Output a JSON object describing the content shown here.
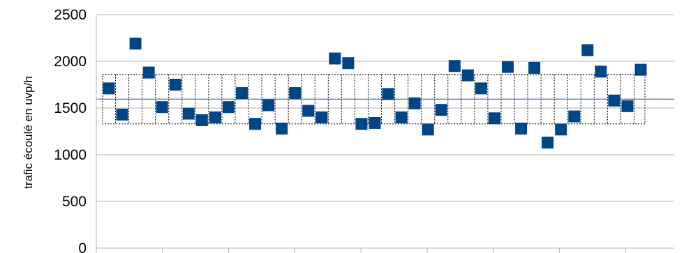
{
  "chart_data": {
    "type": "scatter",
    "title": "",
    "xlabel": "",
    "ylabel": "trafic écoulé en uvp/h",
    "ylim": [
      0,
      2500
    ],
    "y_ticks": [
      "0",
      "500",
      "1000",
      "1500",
      "2000",
      "2500"
    ],
    "grid": "horizontal",
    "mean_line": 1595,
    "band": [
      1330,
      1860
    ],
    "marker": "square",
    "color": "#004586",
    "band_color": "#000000",
    "mean_color": "#4d7fb3",
    "values": [
      1710,
      1430,
      2190,
      1880,
      1510,
      1750,
      1440,
      1370,
      1400,
      1510,
      1660,
      1330,
      1530,
      1280,
      1660,
      1470,
      1400,
      2030,
      1980,
      1330,
      1340,
      1650,
      1400,
      1550,
      1270,
      1480,
      1950,
      1850,
      1710,
      1390,
      1940,
      1280,
      1930,
      1130,
      1270,
      1410,
      2120,
      1890,
      1580,
      1520,
      1910
    ]
  }
}
